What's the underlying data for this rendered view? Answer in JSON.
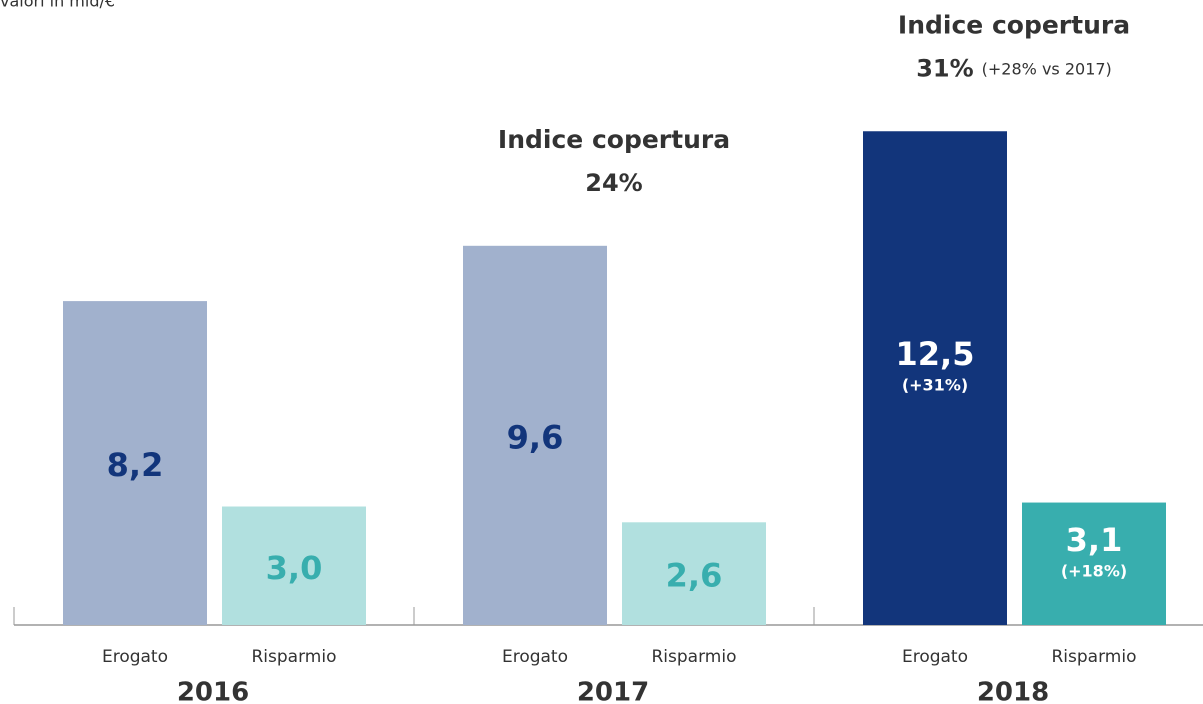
{
  "chart_data": {
    "type": "bar",
    "subtitle": "valori in mld/€",
    "groups": [
      "2016",
      "2017",
      "2018"
    ],
    "series": [
      {
        "name": "Erogato",
        "values": [
          8.2,
          9.6,
          12.5
        ],
        "value_labels": [
          "8,2",
          "9,6",
          "12,5"
        ],
        "notes": [
          null,
          null,
          "(+31%)"
        ],
        "colors": [
          "#a1b1cd",
          "#a1b1cd",
          "#12357b"
        ],
        "label_colors": [
          "#12357b",
          "#12357b",
          "#ffffff"
        ]
      },
      {
        "name": "Risparmio",
        "values": [
          3.0,
          2.6,
          3.1
        ],
        "value_labels": [
          "3,0",
          "2,6",
          "3,1"
        ],
        "notes": [
          null,
          null,
          "(+18%)"
        ],
        "colors": [
          "#b1e0df",
          "#b1e0df",
          "#38aeae"
        ],
        "label_colors": [
          "#38aeae",
          "#38aeae",
          "#ffffff"
        ]
      }
    ],
    "coverage": [
      null,
      {
        "title": "Indice copertura",
        "value": "24%"
      },
      {
        "title": "Indice copertura",
        "value": "31%",
        "note": "(+28% vs 2017)"
      }
    ]
  }
}
